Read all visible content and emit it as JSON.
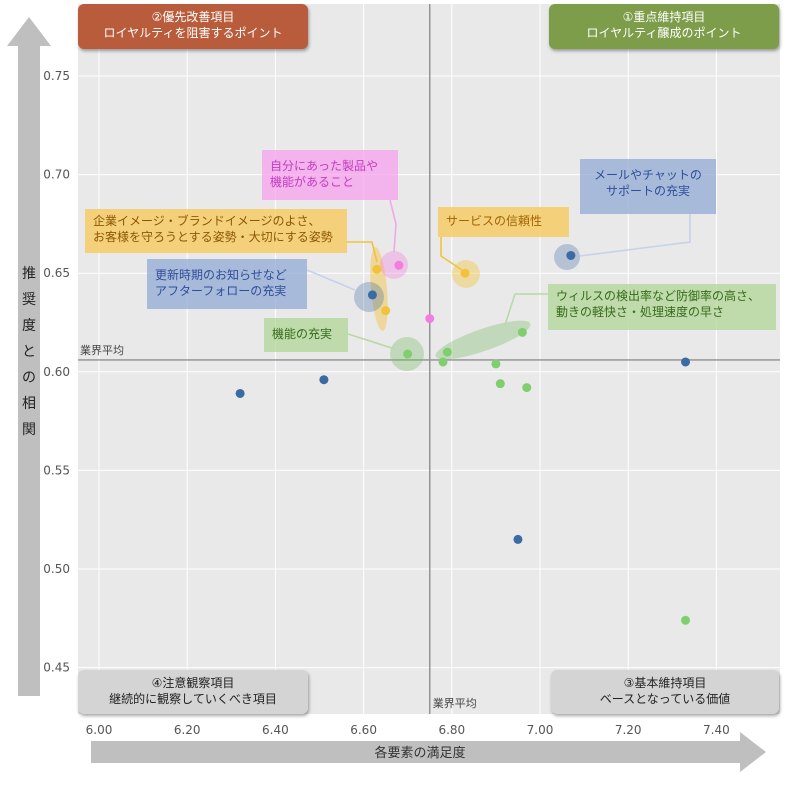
{
  "chart_data": {
    "type": "scatter",
    "xlabel": "各要素の満足度",
    "ylabel": "推奨度との相関",
    "xlim": [
      5.95,
      7.55
    ],
    "ylim": [
      0.44,
      0.77
    ],
    "x_ticks": [
      "6.00",
      "6.20",
      "6.40",
      "6.60",
      "6.80",
      "7.00",
      "7.20",
      "7.40"
    ],
    "y_ticks": [
      "0.75",
      "0.70",
      "0.65",
      "0.60",
      "0.55",
      "0.50",
      "0.45"
    ],
    "grid": true,
    "average_x": 6.75,
    "average_y": 0.606,
    "average_label_x": "業界平均",
    "average_label_y": "業界平均",
    "series": [
      {
        "name": "blue",
        "color": "#3c6aa3",
        "points": [
          [
            7.07,
            0.659
          ],
          [
            6.62,
            0.639
          ],
          [
            6.32,
            0.589
          ],
          [
            6.51,
            0.596
          ],
          [
            7.33,
            0.605
          ],
          [
            6.95,
            0.515
          ]
        ]
      },
      {
        "name": "green",
        "color": "#7fcf6f",
        "points": [
          [
            6.7,
            0.609
          ],
          [
            6.79,
            0.61
          ],
          [
            6.96,
            0.62
          ],
          [
            6.78,
            0.605
          ],
          [
            6.9,
            0.604
          ],
          [
            6.91,
            0.594
          ],
          [
            6.97,
            0.592
          ],
          [
            7.33,
            0.474
          ]
        ]
      },
      {
        "name": "yellow",
        "color": "#f2c23a",
        "points": [
          [
            6.63,
            0.652
          ],
          [
            6.83,
            0.65
          ],
          [
            6.65,
            0.631
          ]
        ]
      },
      {
        "name": "pink",
        "color": "#f47de0",
        "points": [
          [
            6.68,
            0.654
          ],
          [
            6.75,
            0.627
          ]
        ]
      }
    ]
  },
  "quadrants": {
    "q2_line1": "②優先改善項目",
    "q2_line2": "ロイヤルティを阻害するポイント",
    "q1_line1": "①重点維持項目",
    "q1_line2": "ロイヤルティ醸成のポイント",
    "q4_line1": "④注意観察項目",
    "q4_line2": "継続的に観察していくべき項目",
    "q3_line1": "③基本維持項目",
    "q3_line2": "ベースとなっている価値"
  },
  "callouts": {
    "remote_line1": "メールやチャットの",
    "remote_line2": "サポートの充実",
    "trust": "サービスの信頼性",
    "corp_line1": "企業イメージ・ブランドイメージのよさ、",
    "corp_line2": "お客様を守ろうとする姿勢・大切にする姿勢",
    "fit_line1": "自分にあった製品や",
    "fit_line2": "機能があること",
    "update_line1": "更新時期のお知らせなど",
    "update_line2": "アフターフォローの充実",
    "feature": "機能の充実",
    "virus_line1": "ウィルスの検出率など防御率の高さ、",
    "virus_line2": "動きの軽快さ・処理速度の早さ"
  },
  "colors": {
    "plot_bg": "#e9e9e9",
    "grid": "#ffffff",
    "avg_line": "#8f8f8f",
    "arrow": "#bfbfbf"
  }
}
